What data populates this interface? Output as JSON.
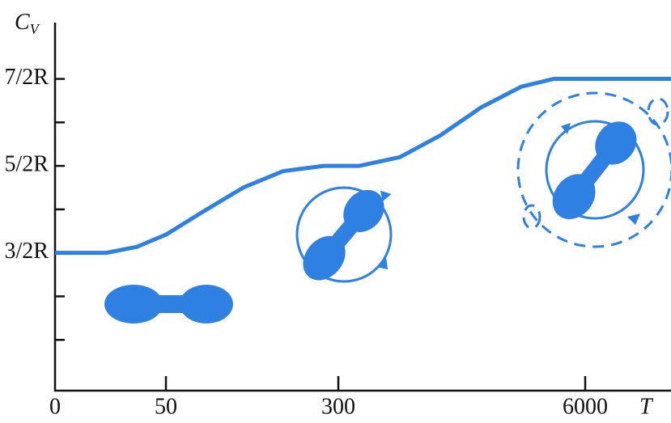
{
  "chart_data": {
    "type": "line",
    "ylabel": "C",
    "ylabel_subscript": "V",
    "xlabel": "T",
    "color": "#2f80e3",
    "x": [
      0,
      23,
      37,
      50,
      103,
      162,
      220,
      279,
      785,
      1720,
      2654,
      3588,
      4523,
      5270,
      8000
    ],
    "values": [
      1.5,
      1.5,
      1.57,
      1.71,
      1.97,
      2.25,
      2.44,
      2.5,
      2.5,
      2.6,
      2.85,
      3.17,
      3.41,
      3.5,
      3.5
    ],
    "xlim": [
      0,
      8000
    ],
    "xticks": [
      0,
      50,
      300,
      6000
    ],
    "ylim": [
      0,
      4.1
    ],
    "yticks": [
      {
        "value": 1.5,
        "label": "3/2R"
      },
      {
        "value": 2.5,
        "label": "5/2R"
      },
      {
        "value": 3.5,
        "label": "7/2R"
      }
    ],
    "yminor": [
      0.5,
      1,
      2,
      3
    ]
  }
}
